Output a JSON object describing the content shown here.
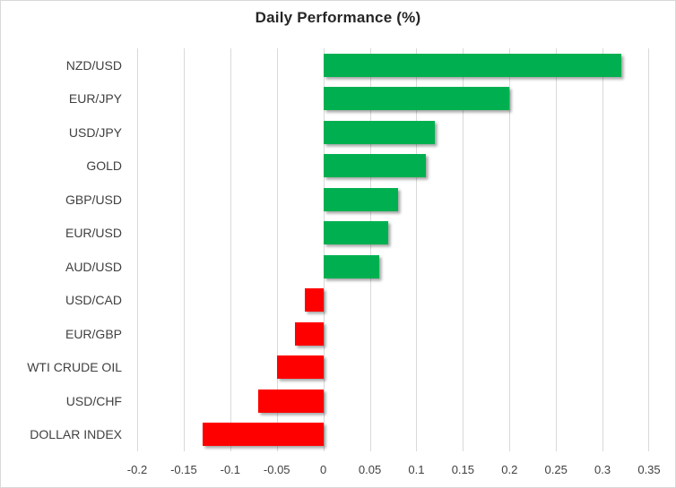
{
  "chart_data": {
    "type": "bar",
    "orientation": "horizontal",
    "title": "Daily Performance (%)",
    "categories": [
      "NZD/USD",
      "EUR/JPY",
      "USD/JPY",
      "GOLD",
      "GBP/USD",
      "EUR/USD",
      "AUD/USD",
      "USD/CAD",
      "EUR/GBP",
      "WTI CRUDE OIL",
      "USD/CHF",
      "DOLLAR INDEX"
    ],
    "values": [
      0.32,
      0.2,
      0.12,
      0.11,
      0.08,
      0.07,
      0.06,
      -0.02,
      -0.03,
      -0.05,
      -0.07,
      -0.13
    ],
    "xlim": [
      -0.2,
      0.35
    ],
    "x_ticks": [
      -0.2,
      -0.15,
      -0.1,
      -0.05,
      0,
      0.05,
      0.1,
      0.15,
      0.2,
      0.25,
      0.3,
      0.35
    ],
    "x_tick_labels": [
      "-0.2",
      "-0.15",
      "-0.1",
      "-0.05",
      "0",
      "0.05",
      "0.1",
      "0.15",
      "0.2",
      "0.25",
      "0.3",
      "0.35"
    ],
    "grid": true,
    "legend": false,
    "xlabel": "",
    "ylabel": "",
    "colors": {
      "positive": "#00b050",
      "negative": "#ff0000",
      "gridline": "#d9d9d9",
      "border": "#d9d9d9",
      "background": "#ffffff",
      "title_text": "#262626",
      "label_text": "#404040"
    }
  }
}
